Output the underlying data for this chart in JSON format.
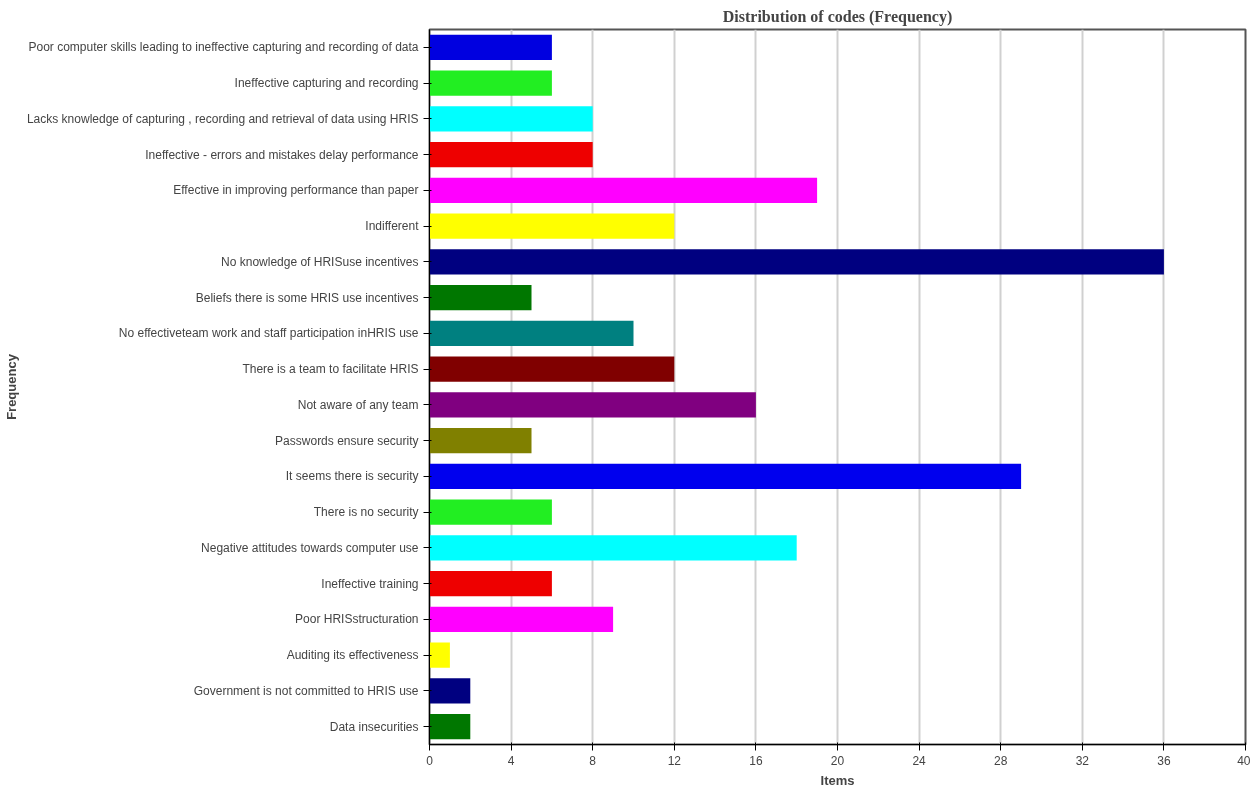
{
  "chart_data": {
    "type": "bar",
    "orientation": "horizontal",
    "title": "Distribution of codes (Frequency)",
    "xlabel": "Items",
    "ylabel": "Frequency",
    "categories": [
      "Poor computer skills leading to ineffective capturing and recording of data",
      "Ineffective capturing and recording",
      "Lacks knowledge of capturing , recording and retrieval of data using HRIS",
      "Ineffective - errors and mistakes delay performance",
      "Effective in improving performance than paper",
      "Indifferent",
      "No knowledge of HRISuse incentives",
      "Beliefs there is some HRIS use incentives",
      "No effectiveteam work and staff participation inHRIS use",
      "There is a team to facilitate HRIS",
      "Not aware of any team",
      "Passwords ensure security",
      "It seems there is security",
      "There is no security",
      "Negative attitudes towards computer use",
      "Ineffective training",
      "Poor HRISstructuration",
      "Auditing its effectiveness",
      "Government is not committed to HRIS use",
      "Data insecurities"
    ],
    "values": [
      6,
      6,
      8,
      8,
      19,
      12,
      36,
      5,
      10,
      12,
      16,
      5,
      29,
      6,
      18,
      6,
      9,
      1,
      2,
      2
    ],
    "colors": [
      "#0000e0",
      "#22ee22",
      "#00ffff",
      "#ee0000",
      "#ff00ff",
      "#ffff00",
      "#000080",
      "#007700",
      "#008080",
      "#800000",
      "#800080",
      "#808000",
      "#0000ee",
      "#22ee22",
      "#00ffff",
      "#ee0000",
      "#ff00ff",
      "#ffff00",
      "#000080",
      "#007700"
    ],
    "xlim": [
      0,
      40
    ],
    "xticks": [
      0,
      4,
      8,
      12,
      16,
      20,
      24,
      28,
      32,
      36,
      40
    ],
    "grid": "x"
  }
}
